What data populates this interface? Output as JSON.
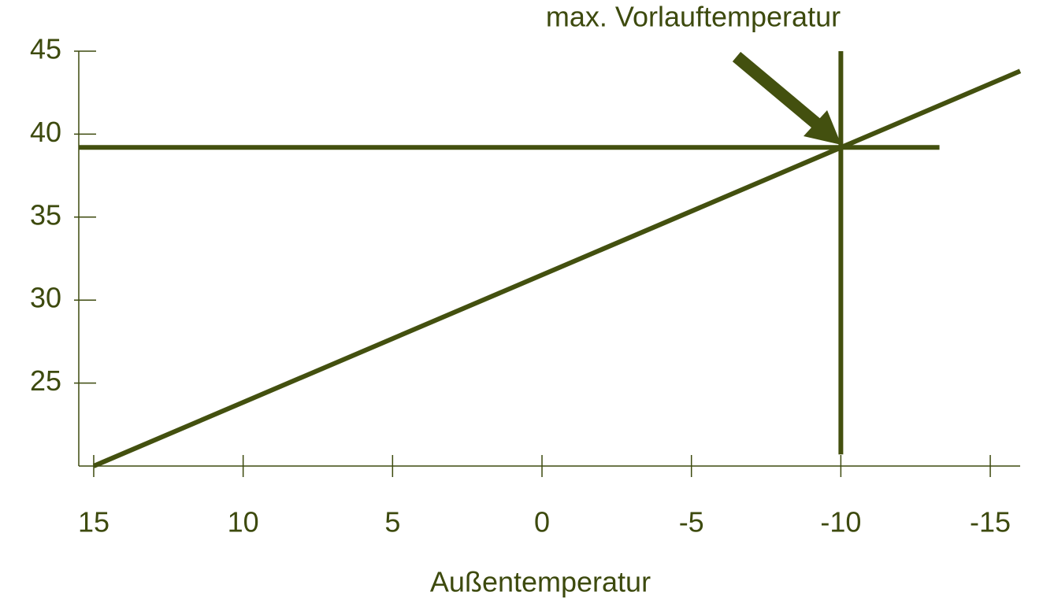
{
  "chart_data": {
    "type": "line",
    "x_label": "Außentemperatur",
    "annotation": "max. Vorlauftemperatur",
    "x": [
      15,
      -16
    ],
    "series": [
      {
        "color": "#43500f",
        "x": [
          15,
          -16
        ],
        "values": [
          20,
          43.8
        ]
      },
      {
        "color": "#43500f",
        "x": [
          15.5,
          -13.3
        ],
        "values": [
          39.2,
          39.2
        ]
      },
      {
        "color": "#43500f",
        "x": [
          -10,
          -10
        ],
        "values": [
          45,
          20.7
        ]
      }
    ],
    "xlim": [
      15.5,
      -16
    ],
    "xticks": [
      15,
      10,
      5,
      0,
      -5,
      -10,
      -15
    ],
    "ylim": [
      20,
      45
    ],
    "yticks": [
      25,
      30,
      35,
      40,
      45
    ],
    "grid": false
  }
}
